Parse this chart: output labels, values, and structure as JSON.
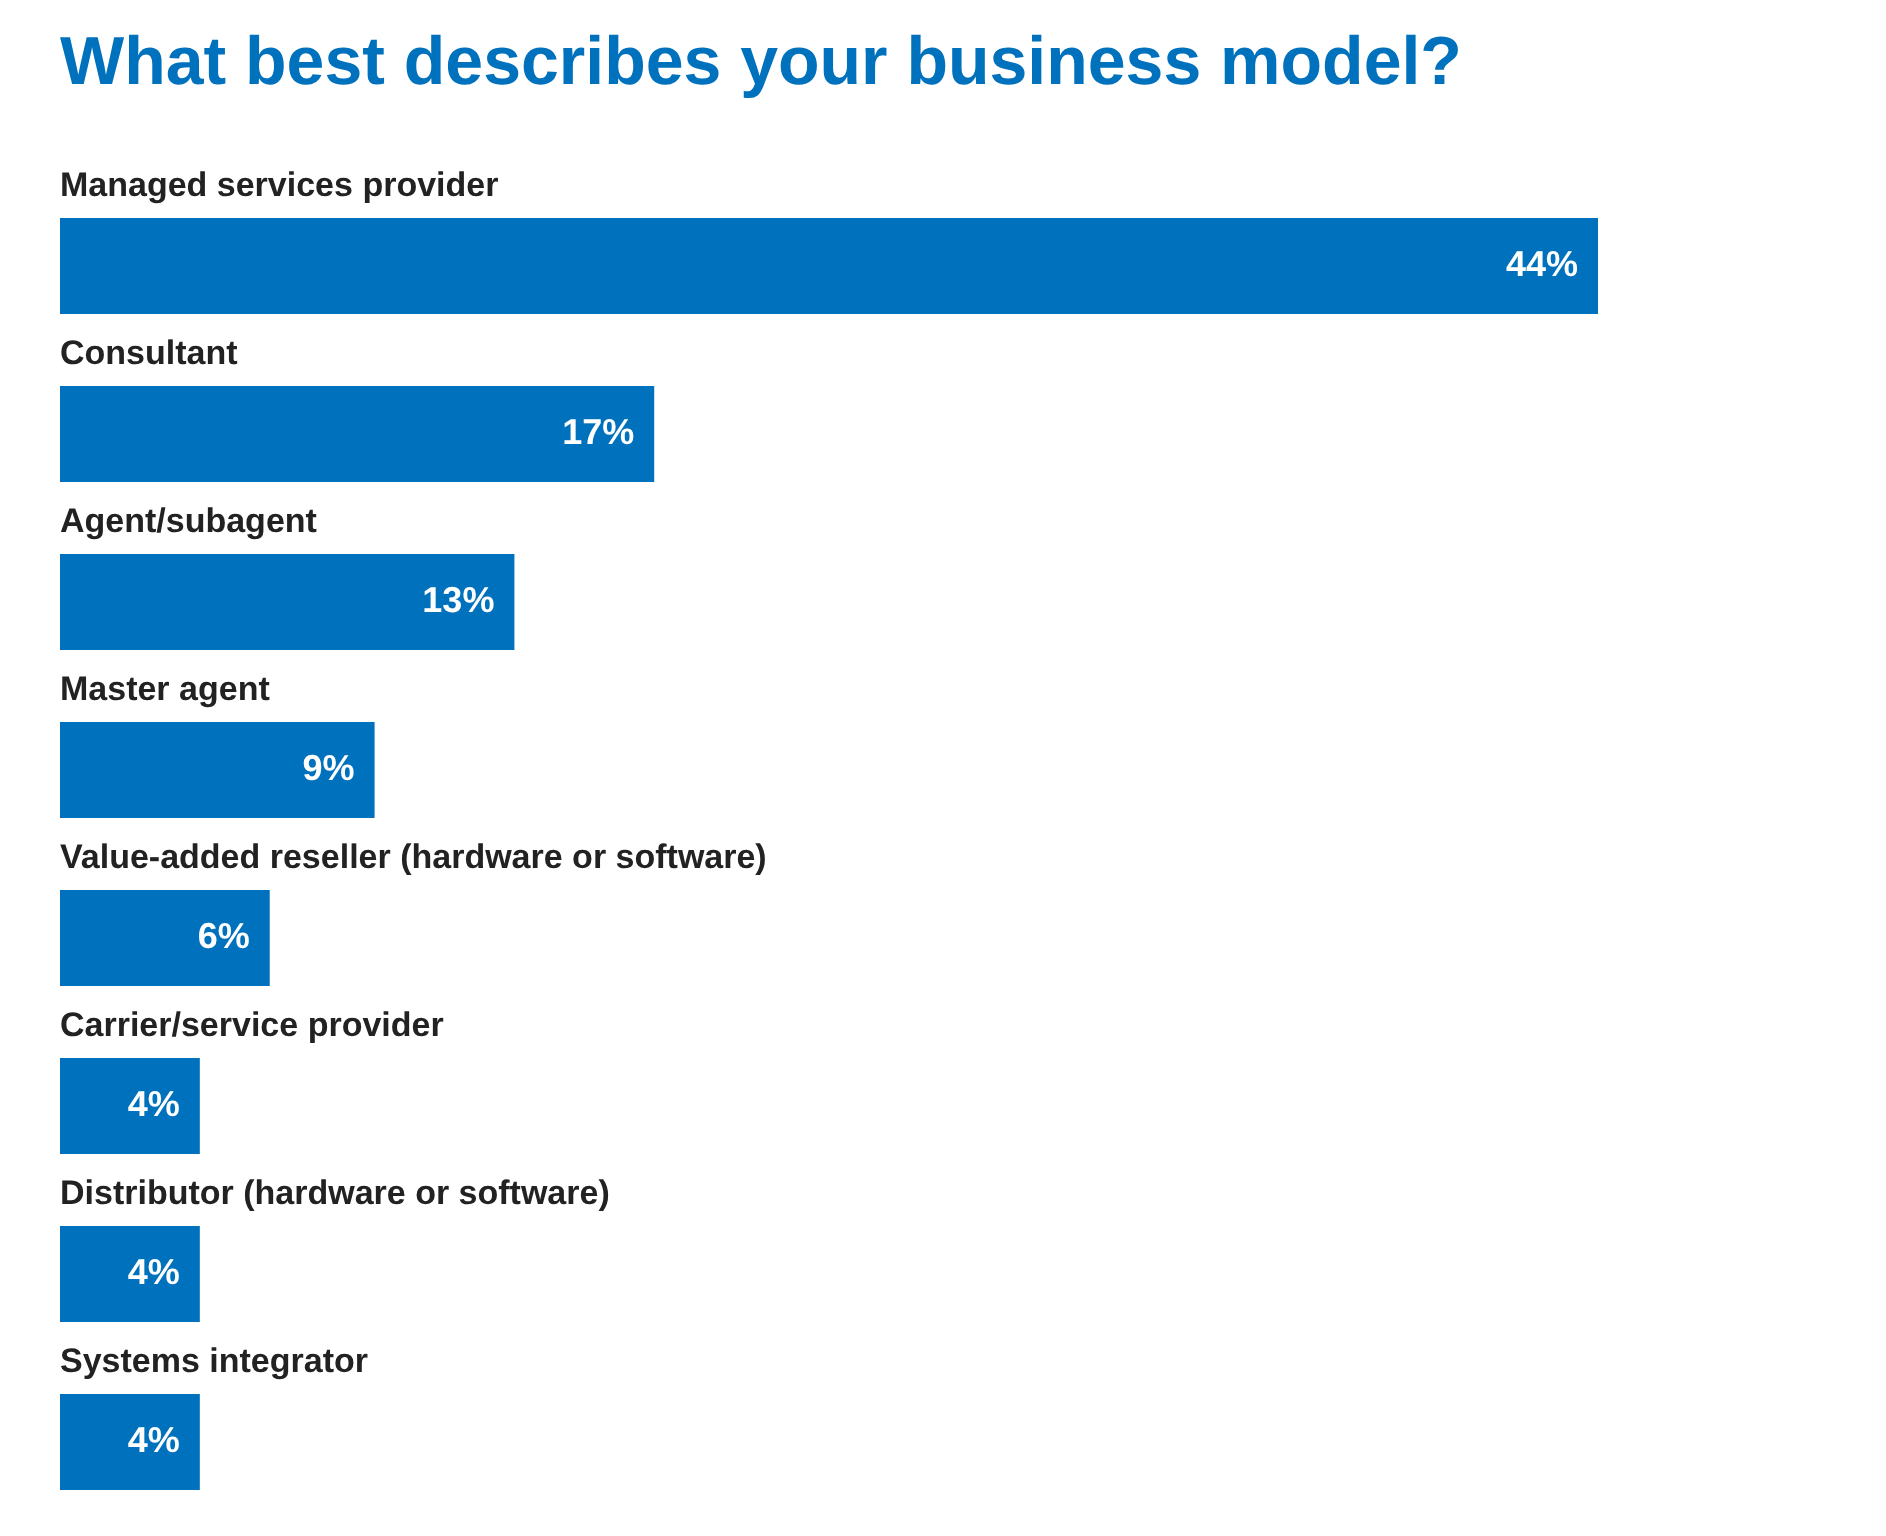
{
  "chart_data": {
    "type": "bar",
    "orientation": "horizontal",
    "title": "What best describes your business model?",
    "categories": [
      "Managed services provider",
      "Consultant",
      "Agent/subagent",
      "Master agent",
      "Value-added reseller (hardware or software)",
      "Carrier/service provider",
      "Distributor (hardware or software)",
      "Systems integrator"
    ],
    "values": [
      44,
      17,
      13,
      9,
      6,
      4,
      4,
      4
    ],
    "value_labels": [
      "44%",
      "17%",
      "13%",
      "9%",
      "6%",
      "4%",
      "4%",
      "4%"
    ],
    "color": "#0071bc"
  }
}
